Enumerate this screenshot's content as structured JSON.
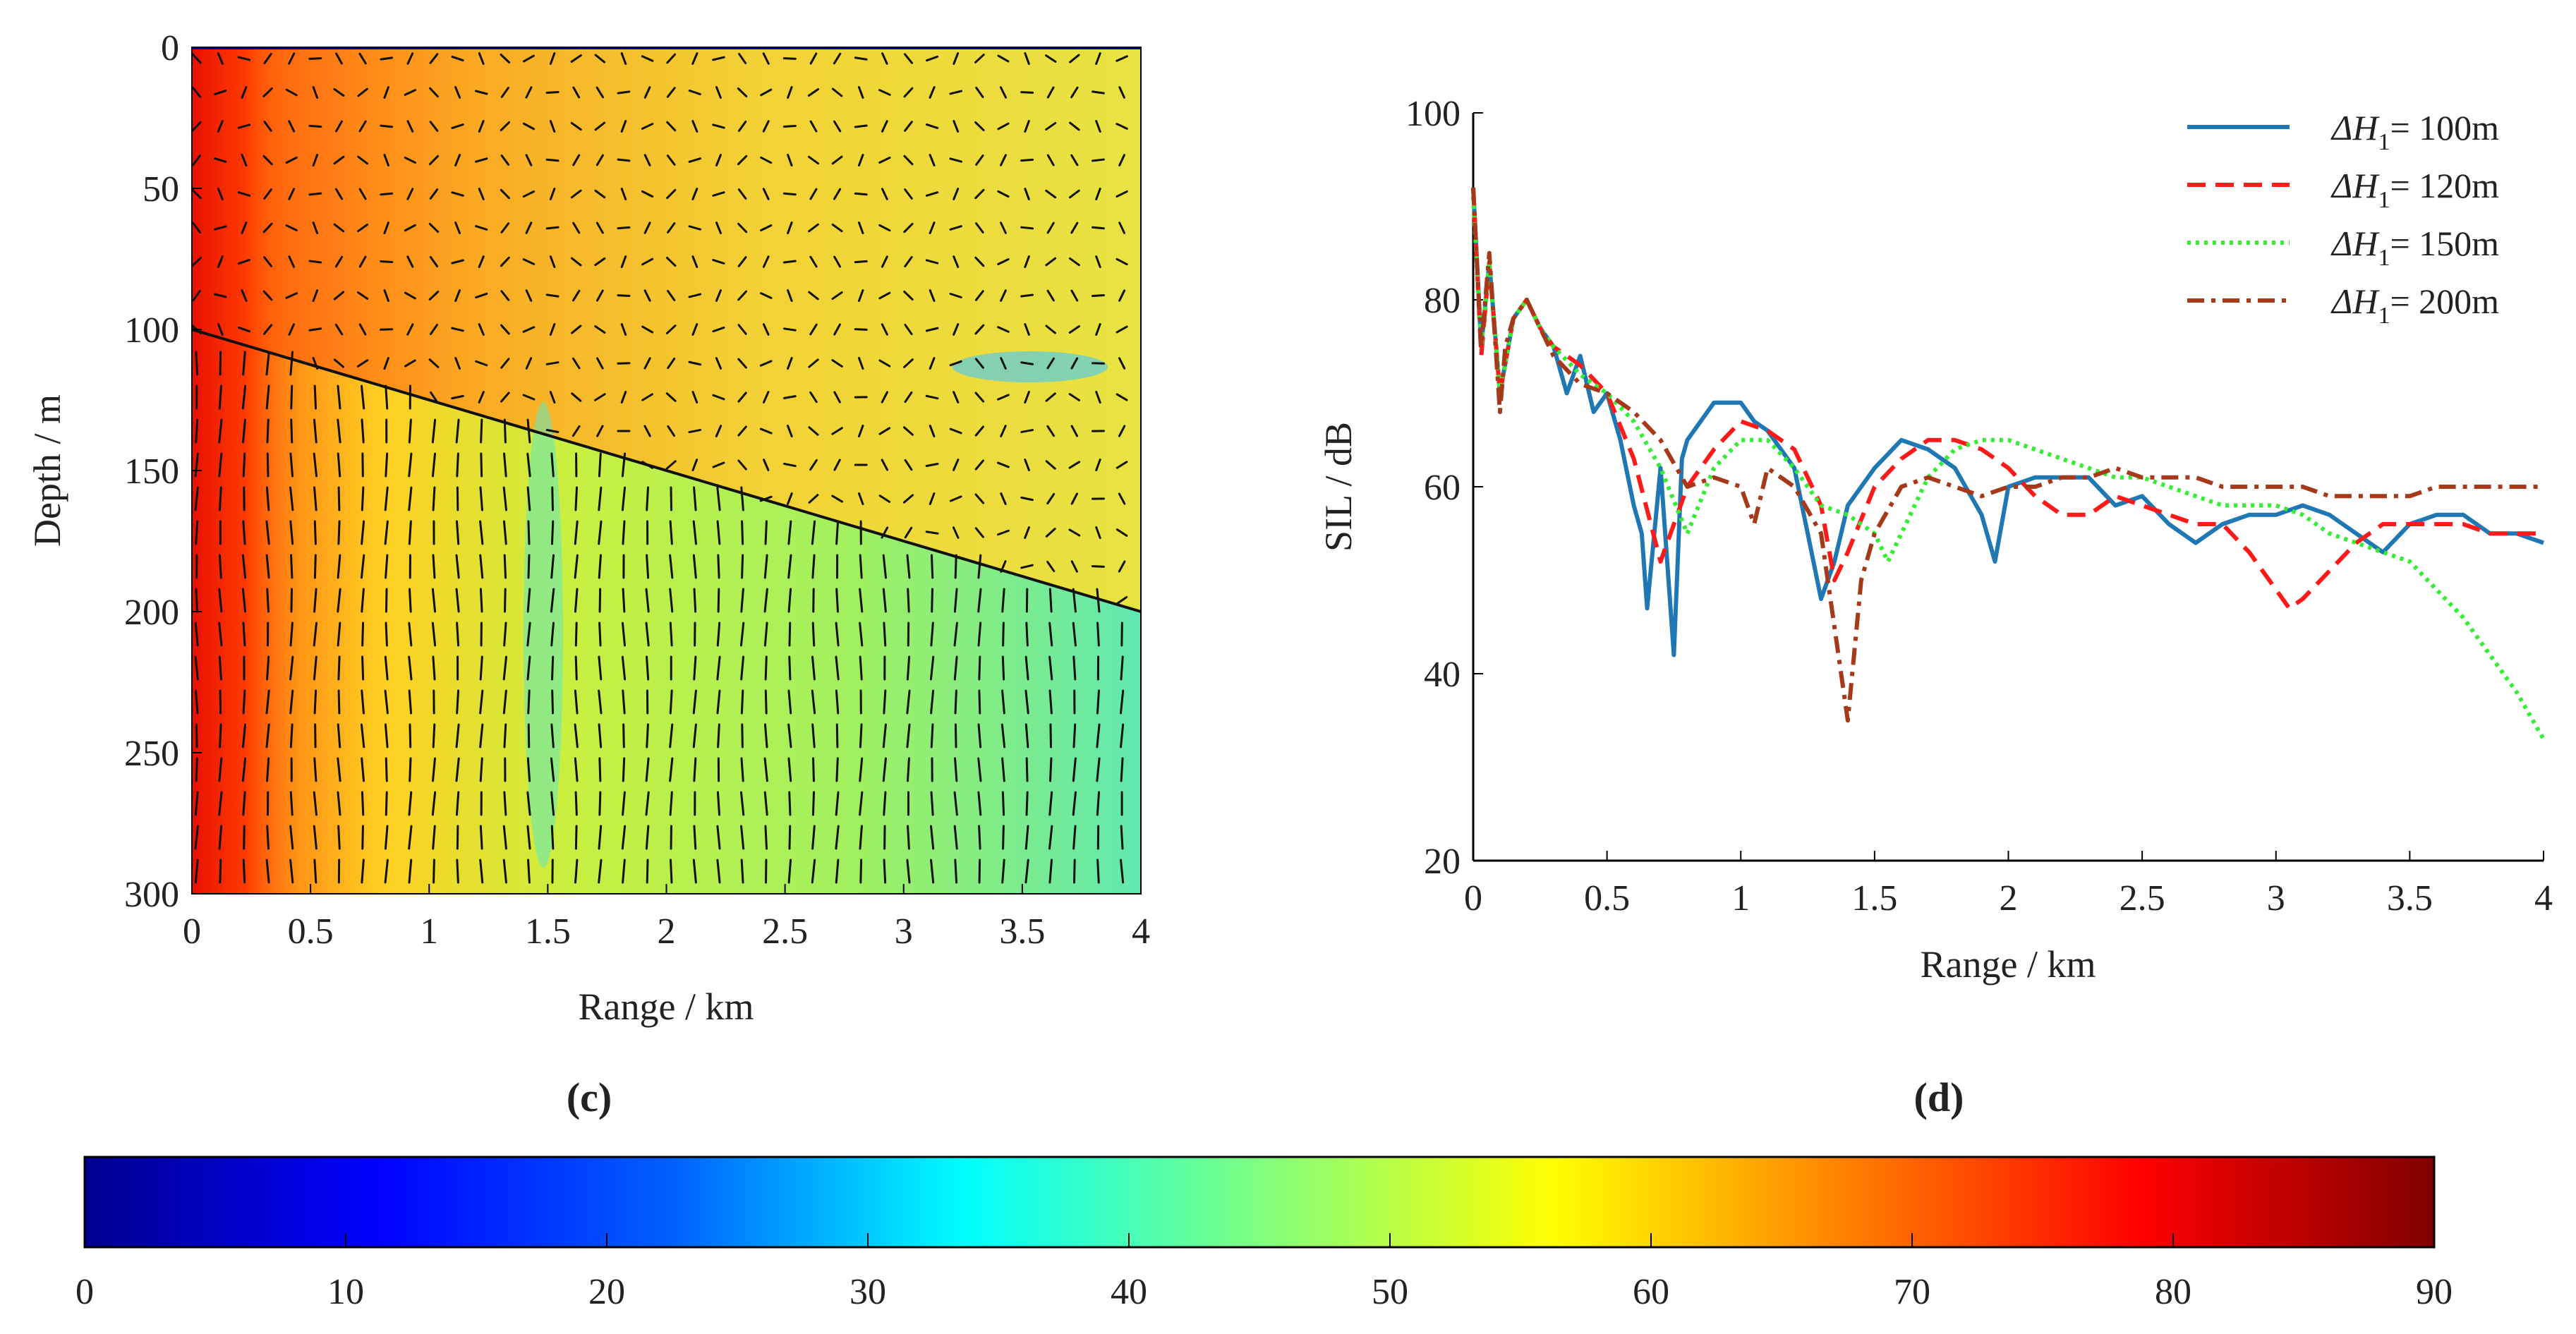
{
  "chart_data": [
    {
      "panel": "(c)",
      "type": "heatmap",
      "title": "",
      "xlabel": "Range / km",
      "ylabel": "Depth / m",
      "xlim": [
        0,
        4
      ],
      "ylim": [
        300,
        0
      ],
      "xticks": [
        "0",
        "0.5",
        "1",
        "1.5",
        "2",
        "2.5",
        "3",
        "3.5",
        "4"
      ],
      "yticks": [
        "0",
        "50",
        "100",
        "150",
        "200",
        "250",
        "300"
      ],
      "interface_line": {
        "x": [
          0,
          4
        ],
        "y": [
          100,
          200
        ]
      },
      "colormap": "jet",
      "clim": [
        0,
        90
      ]
    },
    {
      "panel": "(d)",
      "type": "line",
      "title": "",
      "xlabel": "Range / km",
      "ylabel": "SIL / dB",
      "xlim": [
        0,
        4
      ],
      "ylim": [
        20,
        100
      ],
      "xticks": [
        "0",
        "0.5",
        "1",
        "1.5",
        "2",
        "2.5",
        "3",
        "3.5",
        "4"
      ],
      "yticks": [
        "20",
        "40",
        "60",
        "80",
        "100"
      ],
      "legend_position": "top-right",
      "series": [
        {
          "name": "ΔH1= 100m",
          "legend_prefix": "ΔH",
          "legend_sub": "1",
          "legend_suffix": "= 100m",
          "color": "#1f77b4",
          "dash": "solid",
          "x": [
            0,
            0.03,
            0.06,
            0.1,
            0.15,
            0.2,
            0.25,
            0.3,
            0.35,
            0.4,
            0.45,
            0.5,
            0.55,
            0.6,
            0.63,
            0.65,
            0.7,
            0.75,
            0.78,
            0.8,
            0.9,
            1.0,
            1.05,
            1.1,
            1.2,
            1.25,
            1.3,
            1.35,
            1.4,
            1.5,
            1.6,
            1.7,
            1.8,
            1.9,
            1.95,
            2.0,
            2.1,
            2.2,
            2.3,
            2.4,
            2.5,
            2.6,
            2.7,
            2.8,
            2.9,
            3.0,
            3.1,
            3.2,
            3.3,
            3.4,
            3.5,
            3.6,
            3.7,
            3.8,
            3.9,
            4.0
          ],
          "y": [
            92,
            75,
            84,
            70,
            78,
            80,
            77,
            75,
            70,
            74,
            68,
            70,
            65,
            58,
            55,
            47,
            62,
            42,
            63,
            65,
            69,
            69,
            67,
            66,
            62,
            55,
            48,
            52,
            58,
            62,
            65,
            64,
            62,
            57,
            52,
            60,
            61,
            61,
            61,
            58,
            59,
            56,
            54,
            56,
            57,
            57,
            58,
            57,
            55,
            53,
            56,
            57,
            57,
            55,
            55,
            54
          ]
        },
        {
          "name": "ΔH1= 120m",
          "legend_prefix": "ΔH",
          "legend_sub": "1",
          "legend_suffix": "= 120m",
          "color": "#ff1a1a",
          "dash": "dashed",
          "x": [
            0,
            0.03,
            0.06,
            0.1,
            0.15,
            0.2,
            0.25,
            0.3,
            0.4,
            0.5,
            0.6,
            0.7,
            0.8,
            0.9,
            1.0,
            1.1,
            1.2,
            1.3,
            1.35,
            1.4,
            1.5,
            1.6,
            1.7,
            1.8,
            1.9,
            2.0,
            2.1,
            2.2,
            2.3,
            2.4,
            2.5,
            2.6,
            2.7,
            2.8,
            2.9,
            3.0,
            3.05,
            3.1,
            3.2,
            3.3,
            3.4,
            3.5,
            3.6,
            3.7,
            3.8,
            3.9,
            4.0
          ],
          "y": [
            92,
            74,
            84,
            70,
            78,
            80,
            77,
            75,
            73,
            70,
            63,
            52,
            60,
            64,
            67,
            66,
            64,
            58,
            50,
            53,
            60,
            63,
            65,
            65,
            64,
            62,
            59,
            57,
            57,
            59,
            58,
            57,
            56,
            56,
            53,
            49,
            47,
            48,
            51,
            54,
            56,
            56,
            56,
            56,
            55,
            55,
            55
          ]
        },
        {
          "name": "ΔH1= 150m",
          "legend_prefix": "ΔH",
          "legend_sub": "1",
          "legend_suffix": "= 150m",
          "color": "#33ee33",
          "dash": "dotted",
          "x": [
            0,
            0.03,
            0.06,
            0.1,
            0.15,
            0.2,
            0.25,
            0.3,
            0.4,
            0.5,
            0.6,
            0.7,
            0.8,
            0.9,
            1.0,
            1.1,
            1.2,
            1.3,
            1.4,
            1.5,
            1.55,
            1.6,
            1.7,
            1.8,
            1.9,
            2.0,
            2.1,
            2.2,
            2.3,
            2.4,
            2.5,
            2.6,
            2.7,
            2.8,
            2.9,
            3.0,
            3.1,
            3.2,
            3.3,
            3.4,
            3.5,
            3.6,
            3.7,
            3.8,
            3.9,
            4.0
          ],
          "y": [
            91,
            75,
            84,
            70,
            78,
            80,
            77,
            75,
            72,
            70,
            67,
            62,
            55,
            62,
            65,
            65,
            62,
            58,
            57,
            55,
            52,
            55,
            61,
            64,
            65,
            65,
            64,
            63,
            62,
            61,
            61,
            60,
            59,
            58,
            58,
            58,
            57,
            55,
            54,
            53,
            52,
            49,
            46,
            42,
            38,
            33
          ]
        },
        {
          "name": "ΔH1= 200m",
          "legend_prefix": "ΔH",
          "legend_sub": "1",
          "legend_suffix": "= 200m",
          "color": "#a5391a",
          "dash": "dashdot",
          "x": [
            0,
            0.03,
            0.06,
            0.1,
            0.12,
            0.15,
            0.2,
            0.25,
            0.3,
            0.4,
            0.5,
            0.6,
            0.7,
            0.8,
            0.9,
            1.0,
            1.05,
            1.1,
            1.2,
            1.3,
            1.35,
            1.4,
            1.45,
            1.5,
            1.6,
            1.7,
            1.8,
            1.9,
            2.0,
            2.1,
            2.2,
            2.3,
            2.4,
            2.5,
            2.6,
            2.7,
            2.8,
            2.9,
            3.0,
            3.1,
            3.2,
            3.3,
            3.4,
            3.5,
            3.6,
            3.7,
            3.8,
            3.9,
            4.0
          ],
          "y": [
            92,
            75,
            85,
            68,
            75,
            78,
            80,
            77,
            74,
            71,
            70,
            68,
            65,
            60,
            61,
            60,
            56,
            62,
            60,
            55,
            45,
            35,
            50,
            55,
            60,
            61,
            60,
            59,
            60,
            60,
            61,
            61,
            62,
            61,
            61,
            61,
            60,
            60,
            60,
            60,
            59,
            59,
            59,
            59,
            60,
            60,
            60,
            60,
            60
          ]
        }
      ]
    },
    {
      "panel": "colorbar",
      "type": "colorbar",
      "range": [
        0,
        90
      ],
      "ticks": [
        "0",
        "10",
        "20",
        "30",
        "40",
        "50",
        "60",
        "70",
        "80",
        "90"
      ]
    }
  ]
}
